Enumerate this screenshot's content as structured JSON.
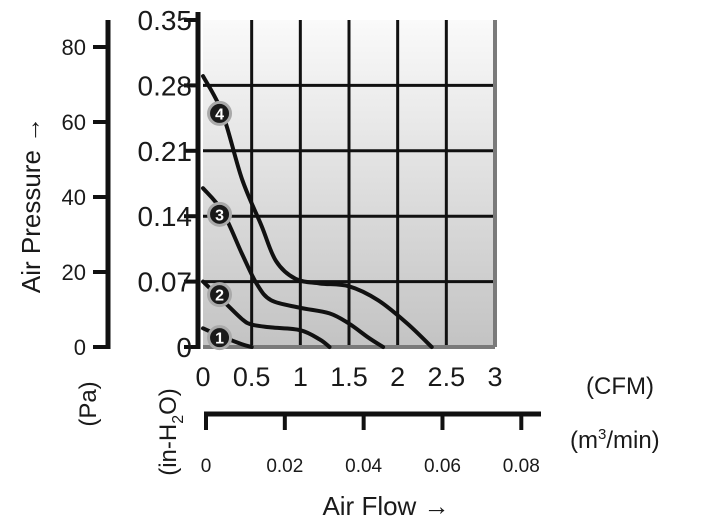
{
  "chart_data": {
    "type": "line",
    "title": "",
    "ylabel": "Air Pressure →",
    "xlabel": "Air Flow →",
    "y_pa_unit": "(Pa)",
    "y_inh2o_unit_main": "(in-H",
    "y_inh2o_unit_sub": "2",
    "y_inh2o_unit_end": "O)",
    "x_cfm_unit": "(CFM)",
    "x_m3_unit_main": "(m",
    "x_m3_unit_sup": "3",
    "x_m3_unit_end": "/min)",
    "x_cfm_ticks": [
      "0",
      "0.5",
      "1",
      "1.5",
      "2",
      "2.5",
      "3"
    ],
    "x_cfm_tick_values": [
      0,
      0.5,
      1,
      1.5,
      2,
      2.5,
      3
    ],
    "x_m3_ticks": [
      "0",
      "0.02",
      "0.04",
      "0.06",
      "0.08"
    ],
    "x_m3_tick_values": [
      0,
      0.02,
      0.04,
      0.06,
      0.08
    ],
    "y_inh2o_ticks": [
      "0",
      "0.07",
      "0.14",
      "0.21",
      "0.28",
      "0.35"
    ],
    "y_inh2o_tick_values": [
      0,
      0.07,
      0.14,
      0.21,
      0.28,
      0.35
    ],
    "y_pa_ticks": [
      "0",
      "20",
      "40",
      "60",
      "80"
    ],
    "y_pa_tick_values": [
      0,
      20,
      40,
      60,
      80
    ],
    "xlim": [
      0,
      3
    ],
    "ylim": [
      0,
      0.35
    ],
    "pa_ylim": [
      0,
      87.2
    ],
    "m3_xlim": [
      0,
      0.085
    ],
    "grid": true,
    "series": [
      {
        "name": "1",
        "x": [
          0,
          0.2,
          0.4,
          0.5
        ],
        "y": [
          0.02,
          0.011,
          0.003,
          0
        ]
      },
      {
        "name": "2",
        "x": [
          0,
          0.2,
          0.4,
          0.5,
          0.7,
          1.0,
          1.2,
          1.3
        ],
        "y": [
          0.07,
          0.05,
          0.03,
          0.024,
          0.021,
          0.018,
          0.008,
          0
        ]
      },
      {
        "name": "3",
        "x": [
          0,
          0.2,
          0.4,
          0.55,
          0.7,
          1.0,
          1.3,
          1.5,
          1.7,
          1.85
        ],
        "y": [
          0.17,
          0.145,
          0.1,
          0.068,
          0.05,
          0.042,
          0.036,
          0.025,
          0.01,
          0
        ]
      },
      {
        "name": "4",
        "x": [
          0,
          0.2,
          0.4,
          0.6,
          0.75,
          0.95,
          1.2,
          1.5,
          1.8,
          2.1,
          2.35
        ],
        "y": [
          0.29,
          0.25,
          0.18,
          0.13,
          0.092,
          0.073,
          0.068,
          0.065,
          0.05,
          0.025,
          0
        ]
      }
    ],
    "labels": [
      {
        "text": "1",
        "x": 0.17,
        "y": 0.01
      },
      {
        "text": "2",
        "x": 0.17,
        "y": 0.056
      },
      {
        "text": "3",
        "x": 0.17,
        "y": 0.142
      },
      {
        "text": "4",
        "x": 0.17,
        "y": 0.25
      }
    ]
  }
}
